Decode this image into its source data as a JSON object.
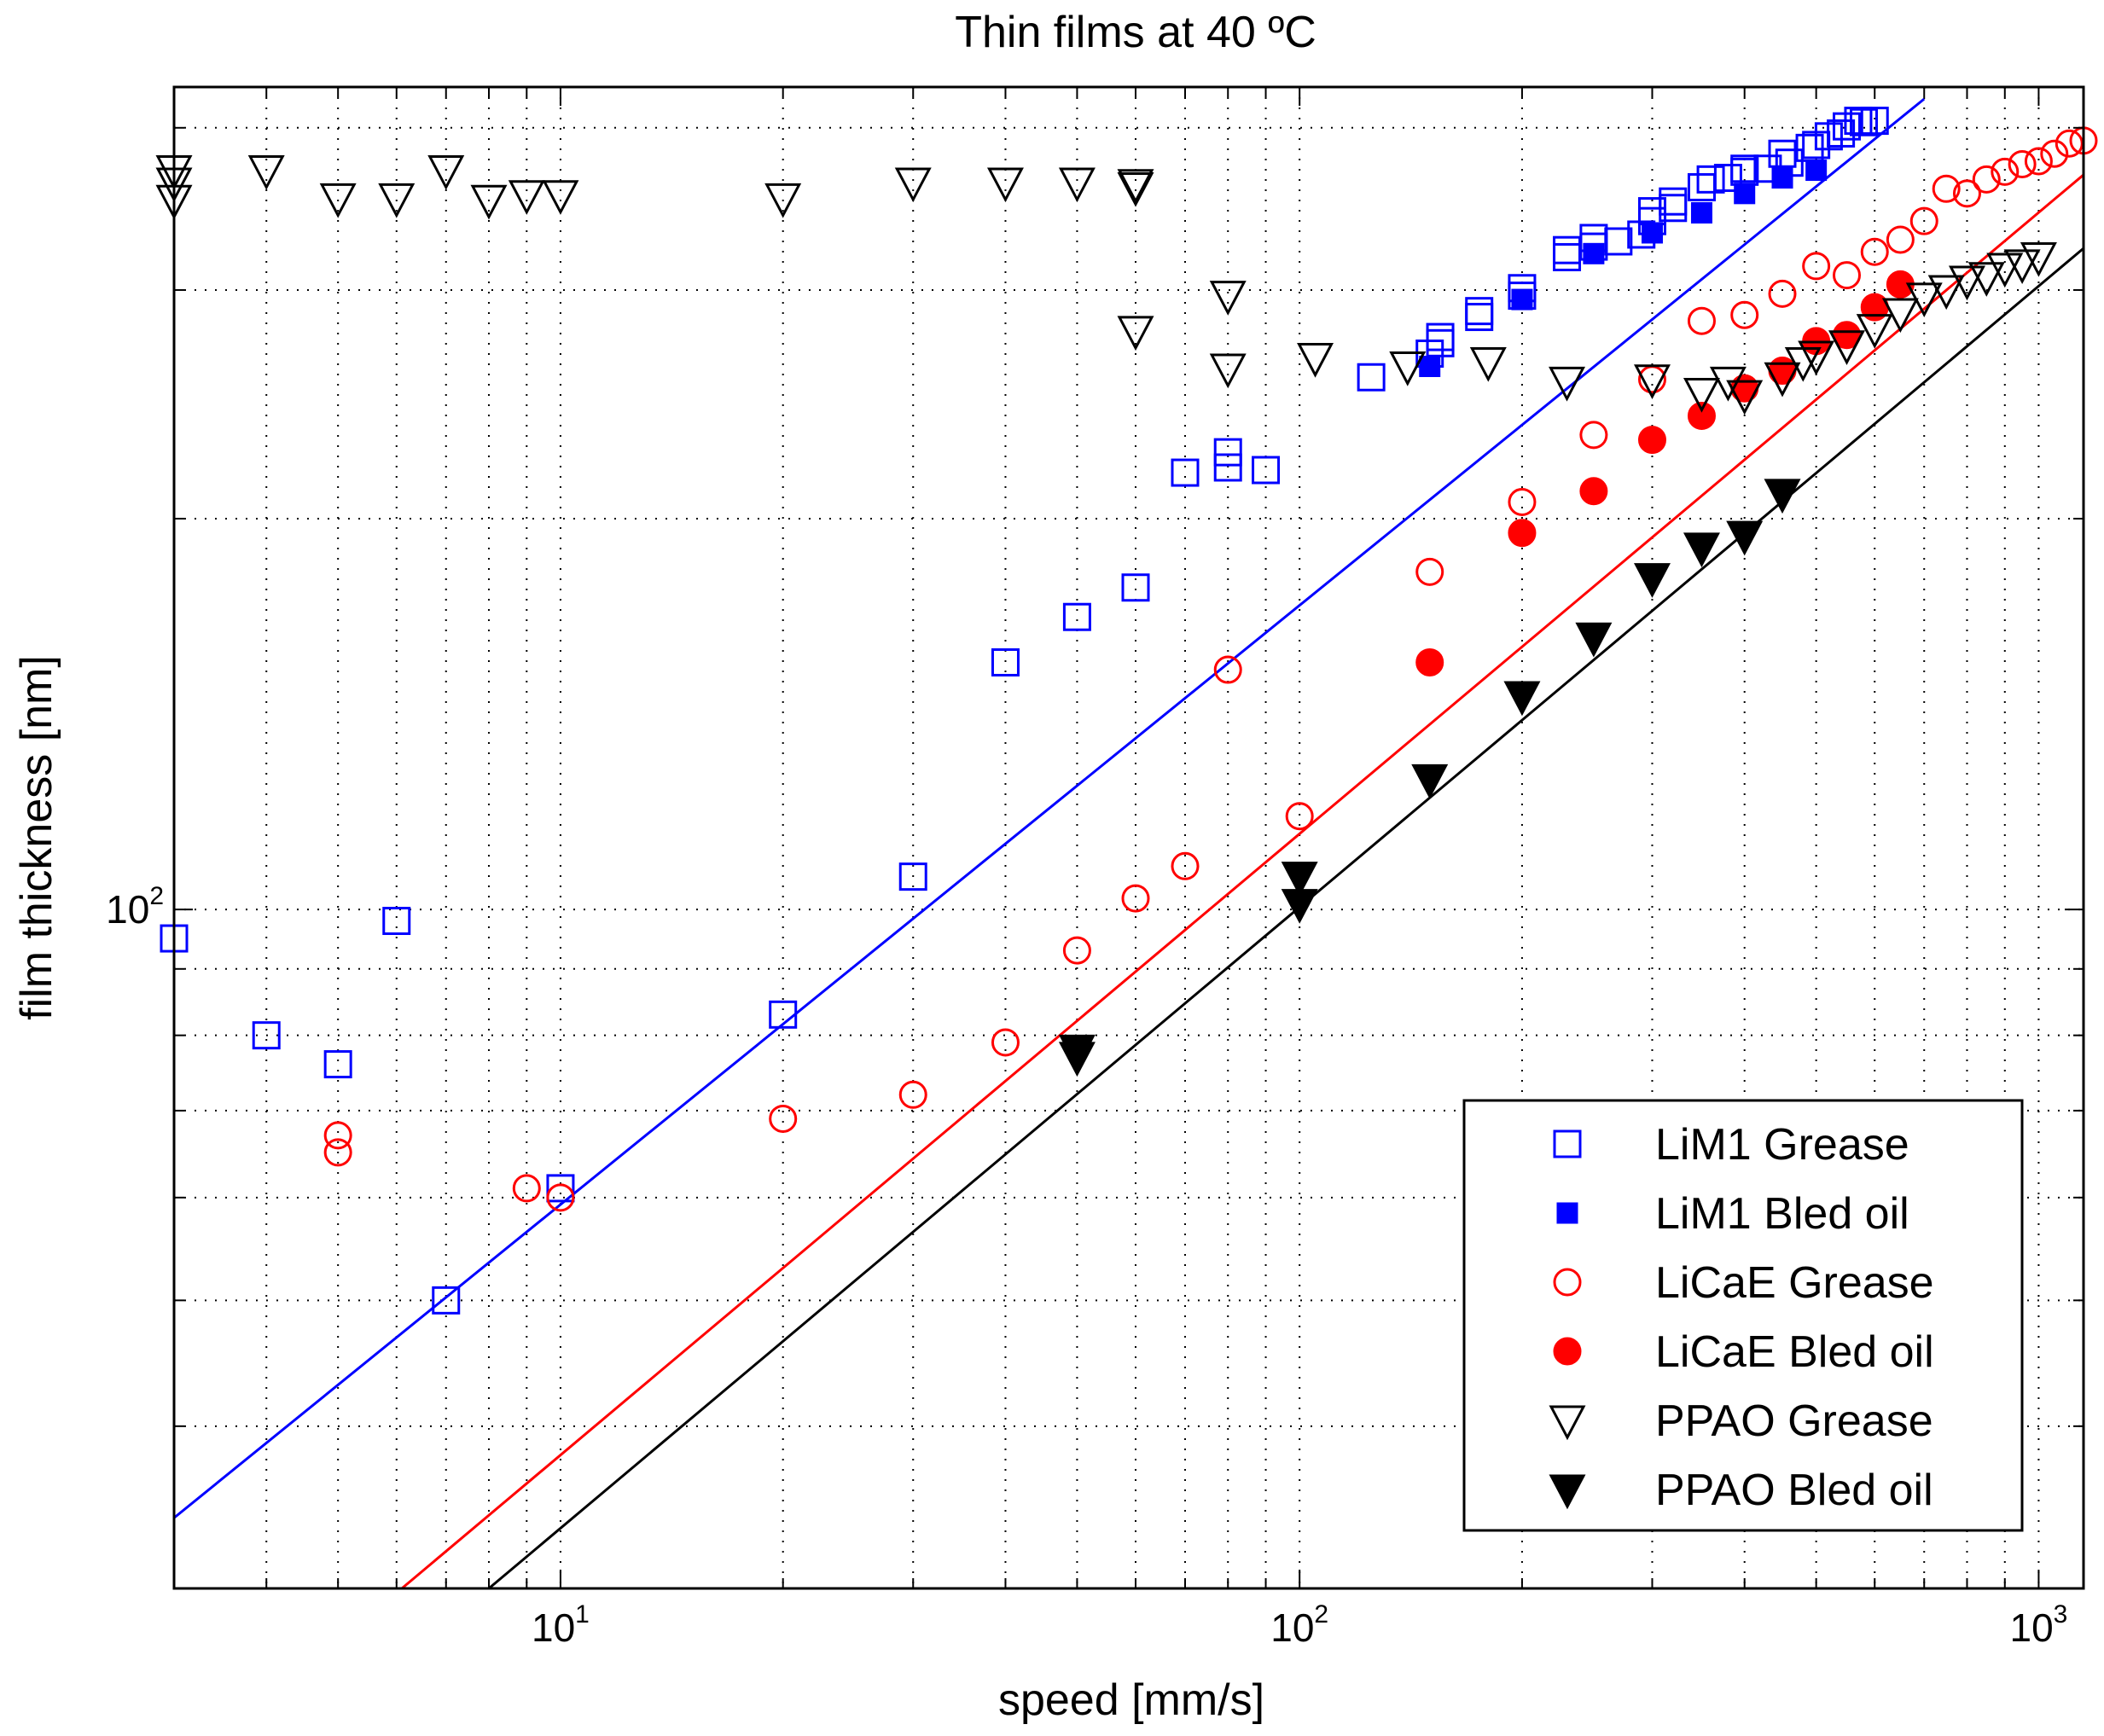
{
  "chart_data": {
    "type": "scatter",
    "title": "Thin films at 40 ºC",
    "xlabel": "speed [mm/s]",
    "ylabel": "film thickness [nm]",
    "xscale": "log",
    "yscale": "log",
    "xlim": [
      3,
      1150
    ],
    "ylim": [
      30,
      430
    ],
    "grid": true,
    "legend_position": "bottom-right",
    "x_ticks": [
      {
        "value": 10,
        "base": "10",
        "exp": "1"
      },
      {
        "value": 100,
        "base": "10",
        "exp": "2"
      },
      {
        "value": 1000,
        "base": "10",
        "exp": "3"
      }
    ],
    "y_ticks": [
      {
        "value": 100,
        "base": "10",
        "exp": "2"
      }
    ],
    "series": [
      {
        "name": "LiM1 Grease",
        "marker": "square",
        "filled": false,
        "color": "#0000ff",
        "points": [
          [
            3,
            95
          ],
          [
            4,
            80
          ],
          [
            5,
            76
          ],
          [
            6,
            98
          ],
          [
            7,
            50
          ],
          [
            10,
            61
          ],
          [
            20,
            83
          ],
          [
            30,
            106
          ],
          [
            40,
            155
          ],
          [
            50,
            168
          ],
          [
            60,
            177
          ],
          [
            70,
            217
          ],
          [
            80,
            219
          ],
          [
            80,
            225
          ],
          [
            90,
            218
          ],
          [
            125,
            257
          ],
          [
            150,
            268
          ],
          [
            155,
            273
          ],
          [
            155,
            276
          ],
          [
            175,
            286
          ],
          [
            175,
            289
          ],
          [
            200,
            297
          ],
          [
            200,
            301
          ],
          [
            230,
            318
          ],
          [
            230,
            322
          ],
          [
            250,
            324
          ],
          [
            250,
            329
          ],
          [
            270,
            327
          ],
          [
            290,
            331
          ],
          [
            300,
            339
          ],
          [
            300,
            345
          ],
          [
            320,
            347
          ],
          [
            320,
            351
          ],
          [
            350,
            360
          ],
          [
            360,
            365
          ],
          [
            380,
            366
          ],
          [
            400,
            370
          ],
          [
            400,
            372
          ],
          [
            430,
            372
          ],
          [
            450,
            382
          ],
          [
            460,
            376
          ],
          [
            490,
            386
          ],
          [
            500,
            388
          ],
          [
            520,
            394
          ],
          [
            540,
            396
          ],
          [
            550,
            401
          ],
          [
            570,
            405
          ],
          [
            580,
            404
          ],
          [
            600,
            405
          ]
        ]
      },
      {
        "name": "LiM1 Bled oil",
        "marker": "square",
        "filled": true,
        "color": "#0000ff",
        "points": [
          [
            150,
            262
          ],
          [
            200,
            295
          ],
          [
            250,
            320
          ],
          [
            300,
            332
          ],
          [
            350,
            344
          ],
          [
            400,
            356
          ],
          [
            450,
            366
          ],
          [
            500,
            371
          ]
        ]
      },
      {
        "name": "LiCaE Grease",
        "marker": "circle",
        "filled": false,
        "color": "#ff0000",
        "points": [
          [
            5,
            67
          ],
          [
            5,
            65
          ],
          [
            9,
            61
          ],
          [
            10,
            60
          ],
          [
            20,
            69
          ],
          [
            30,
            72
          ],
          [
            40,
            79
          ],
          [
            50,
            93
          ],
          [
            60,
            102
          ],
          [
            70,
            108
          ],
          [
            80,
            153
          ],
          [
            100,
            118
          ],
          [
            150,
            182
          ],
          [
            200,
            206
          ],
          [
            250,
            232
          ],
          [
            300,
            256
          ],
          [
            350,
            284
          ],
          [
            400,
            287
          ],
          [
            450,
            298
          ],
          [
            500,
            313
          ],
          [
            550,
            308
          ],
          [
            600,
            321
          ],
          [
            650,
            328
          ],
          [
            700,
            339
          ],
          [
            750,
            359
          ],
          [
            800,
            356
          ],
          [
            850,
            365
          ],
          [
            900,
            370
          ],
          [
            950,
            375
          ],
          [
            1000,
            377
          ],
          [
            1050,
            382
          ],
          [
            1100,
            389
          ],
          [
            1150,
            391
          ]
        ]
      },
      {
        "name": "LiCaE Bled oil",
        "marker": "circle",
        "filled": true,
        "color": "#ff0000",
        "points": [
          [
            150,
            155
          ],
          [
            200,
            195
          ],
          [
            250,
            210
          ],
          [
            300,
            230
          ],
          [
            350,
            240
          ],
          [
            400,
            252
          ],
          [
            450,
            260
          ],
          [
            500,
            274
          ],
          [
            550,
            277
          ],
          [
            600,
            291
          ],
          [
            650,
            303
          ]
        ]
      },
      {
        "name": "PPAO Grease",
        "marker": "triangle-down",
        "filled": false,
        "color": "#000000",
        "points": [
          [
            3,
            371
          ],
          [
            3,
            363
          ],
          [
            3,
            352
          ],
          [
            4,
            371
          ],
          [
            5,
            353
          ],
          [
            6,
            353
          ],
          [
            7,
            371
          ],
          [
            8,
            352
          ],
          [
            9,
            355
          ],
          [
            10,
            355
          ],
          [
            20,
            353
          ],
          [
            30,
            363
          ],
          [
            40,
            363
          ],
          [
            50,
            363
          ],
          [
            60,
            362
          ],
          [
            60,
            360
          ],
          [
            80,
            297
          ],
          [
            60,
            279
          ],
          [
            80,
            261
          ],
          [
            105,
            266
          ],
          [
            140,
            262
          ],
          [
            180,
            264
          ],
          [
            230,
            255
          ],
          [
            300,
            256
          ],
          [
            350,
            250
          ],
          [
            380,
            255
          ],
          [
            400,
            249
          ],
          [
            450,
            257
          ],
          [
            480,
            264
          ],
          [
            500,
            267
          ],
          [
            550,
            272
          ],
          [
            600,
            280
          ],
          [
            650,
            288
          ],
          [
            700,
            296
          ],
          [
            750,
            300
          ],
          [
            800,
            305
          ],
          [
            850,
            307
          ],
          [
            900,
            312
          ],
          [
            950,
            314
          ],
          [
            1000,
            318
          ]
        ]
      },
      {
        "name": "PPAO Bled oil",
        "marker": "triangle-down",
        "filled": true,
        "color": "#000000",
        "points": [
          [
            50,
            78
          ],
          [
            50,
            77
          ],
          [
            100,
            106
          ],
          [
            100,
            101
          ],
          [
            150,
            126
          ],
          [
            200,
            146
          ],
          [
            250,
            162
          ],
          [
            300,
            180
          ],
          [
            350,
            190
          ],
          [
            400,
            194
          ],
          [
            450,
            209
          ]
        ]
      }
    ],
    "fit_lines": [
      {
        "series": "LiM1",
        "color": "#0000ff",
        "from": [
          3,
          34
        ],
        "to": [
          700,
          421
        ]
      },
      {
        "series": "LiCaE",
        "color": "#ff0000",
        "from": [
          6.1,
          30
        ],
        "to": [
          1150,
          368
        ]
      },
      {
        "series": "PPAO",
        "color": "#000000",
        "from": [
          8.0,
          30
        ],
        "to": [
          1150,
          323
        ]
      }
    ]
  }
}
